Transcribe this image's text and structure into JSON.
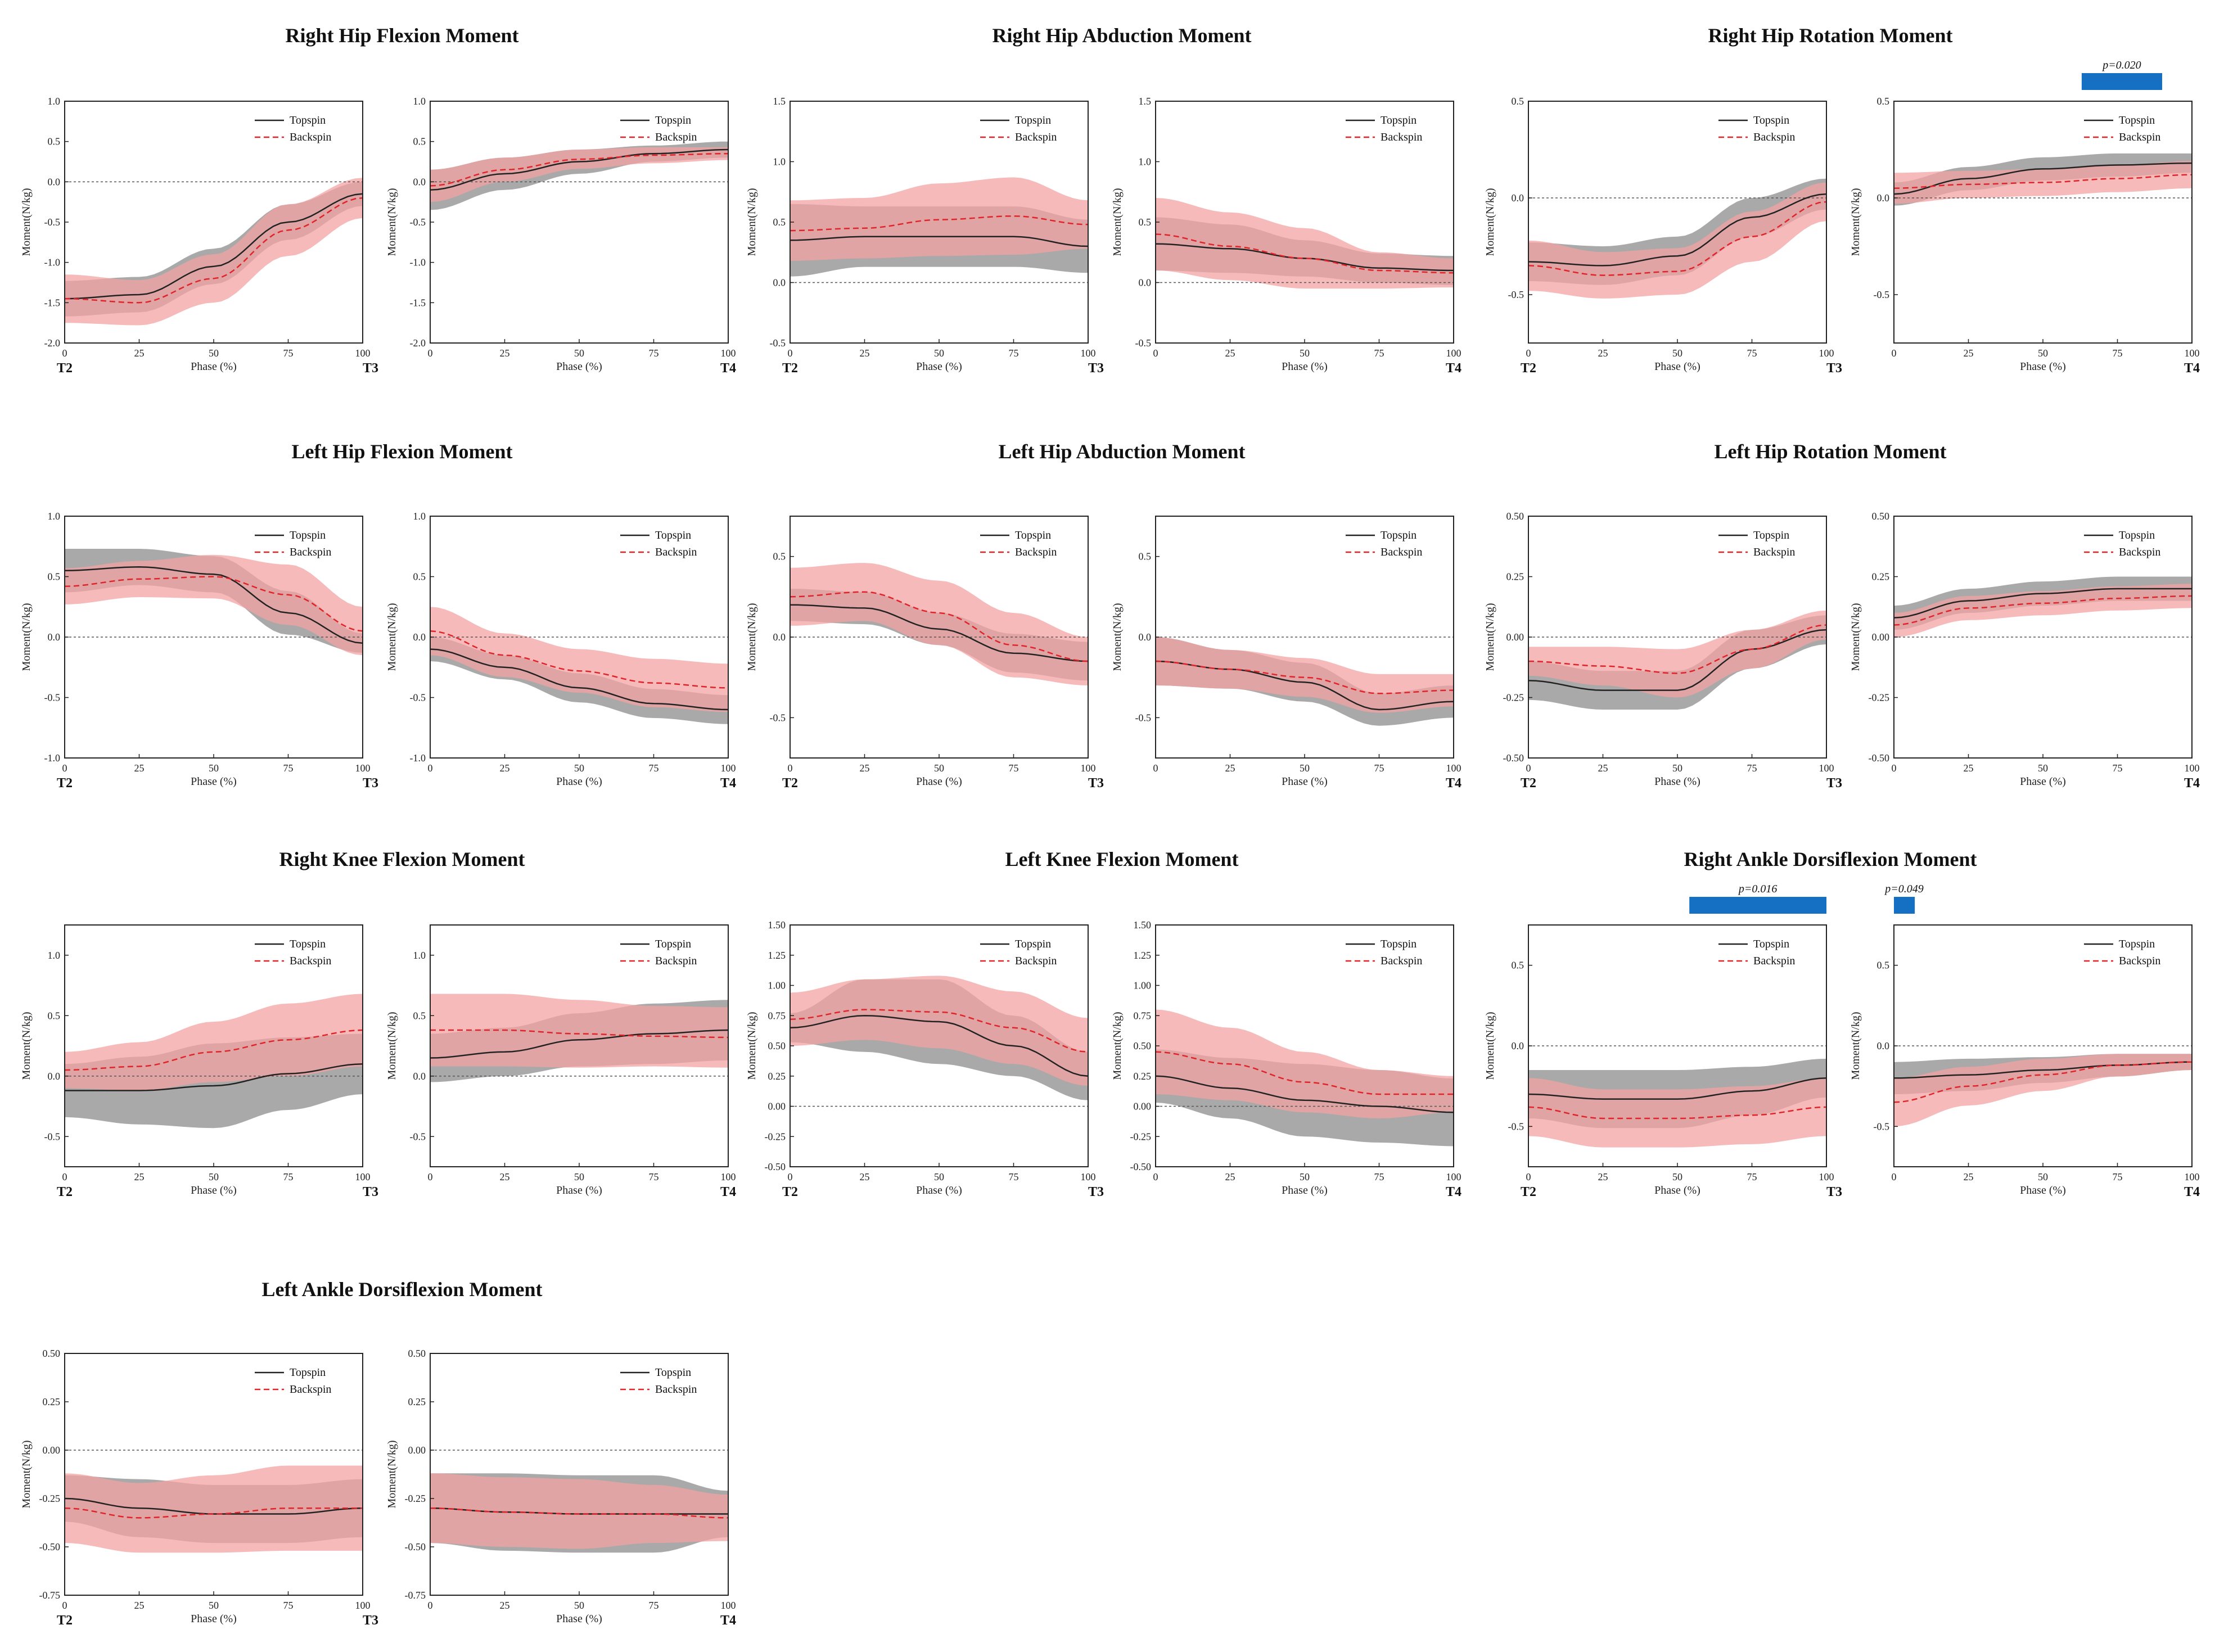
{
  "colors": {
    "topspin": "#222222",
    "backspin": "#e0242a",
    "topspin_band": "#8c8c8c",
    "backspin_band": "#f4a3a3",
    "sig_bar": "#1570c4",
    "zero_line": "#555555"
  },
  "labels": {
    "topspin": "Topspin",
    "backspin": "Backspin",
    "xlabel": "Phase (%)"
  },
  "chart_data": [
    {
      "type": "line",
      "title": "Right Hip Flexion Moment",
      "ylabel": "Moment(N/kg)",
      "ylim": [
        -2,
        1
      ],
      "yticks": [
        "1.0",
        "0.5",
        "0.0",
        "-0.5",
        "-1.0",
        "-1.5",
        "-2.0"
      ],
      "xticks": [
        "0",
        "25",
        "50",
        "75",
        "100"
      ],
      "start": "T2",
      "mid": "T3",
      "end": "T4",
      "left": {
        "x": [
          0,
          25,
          50,
          75,
          100
        ],
        "top": [
          -1.45,
          -1.4,
          -1.05,
          -0.5,
          -0.15
        ],
        "back": [
          -1.45,
          -1.5,
          -1.2,
          -0.6,
          -0.2
        ],
        "top_sd": [
          0.22,
          0.22,
          0.22,
          0.22,
          0.15
        ],
        "back_sd": [
          0.3,
          0.28,
          0.3,
          0.32,
          0.25
        ]
      },
      "right": {
        "x": [
          0,
          25,
          50,
          75,
          100
        ],
        "top": [
          -0.1,
          0.1,
          0.25,
          0.35,
          0.4
        ],
        "back": [
          -0.05,
          0.15,
          0.28,
          0.33,
          0.35
        ],
        "top_sd": [
          0.25,
          0.2,
          0.15,
          0.1,
          0.1
        ],
        "back_sd": [
          0.2,
          0.15,
          0.12,
          0.1,
          0.08
        ]
      }
    },
    {
      "type": "line",
      "title": "Right Hip Abduction Moment",
      "ylabel": "Moment(N/kg)",
      "ylim": [
        -0.5,
        1.5
      ],
      "yticks": [
        "1.5",
        "1.0",
        "0.5",
        "0.0",
        "-0.5"
      ],
      "xticks": [
        "0",
        "25",
        "50",
        "75",
        "100"
      ],
      "start": "T2",
      "mid": "T3",
      "end": "T4",
      "left": {
        "x": [
          0,
          25,
          50,
          75,
          100
        ],
        "top": [
          0.35,
          0.38,
          0.38,
          0.38,
          0.3
        ],
        "back": [
          0.43,
          0.45,
          0.52,
          0.55,
          0.48
        ],
        "top_sd": [
          0.3,
          0.25,
          0.25,
          0.25,
          0.22
        ],
        "back_sd": [
          0.25,
          0.25,
          0.3,
          0.32,
          0.2
        ]
      },
      "right": {
        "x": [
          0,
          25,
          50,
          75,
          100
        ],
        "top": [
          0.32,
          0.28,
          0.2,
          0.12,
          0.1
        ],
        "back": [
          0.4,
          0.3,
          0.2,
          0.1,
          0.08
        ],
        "top_sd": [
          0.22,
          0.2,
          0.15,
          0.12,
          0.12
        ],
        "back_sd": [
          0.3,
          0.28,
          0.25,
          0.15,
          0.12
        ]
      }
    },
    {
      "type": "line",
      "title": "Right Hip Rotation Moment",
      "ylabel": "Moment(N/kg)",
      "ylim": [
        -0.75,
        0.5
      ],
      "yticks": [
        "0.5",
        "0.0",
        "-0.5"
      ],
      "xticks": [
        "0",
        "25",
        "50",
        "75",
        "100"
      ],
      "start": "T2",
      "mid": "T3",
      "end": "T4",
      "sig_right": {
        "label": "p=0.020",
        "from": 63,
        "to": 90
      },
      "left": {
        "x": [
          0,
          25,
          50,
          75,
          100
        ],
        "top": [
          -0.33,
          -0.35,
          -0.3,
          -0.1,
          0.02
        ],
        "back": [
          -0.35,
          -0.4,
          -0.38,
          -0.2,
          -0.02
        ],
        "top_sd": [
          0.1,
          0.1,
          0.1,
          0.1,
          0.08
        ],
        "back_sd": [
          0.13,
          0.12,
          0.12,
          0.13,
          0.1
        ]
      },
      "right": {
        "x": [
          0,
          25,
          50,
          75,
          100
        ],
        "top": [
          0.02,
          0.1,
          0.15,
          0.17,
          0.18
        ],
        "back": [
          0.05,
          0.07,
          0.08,
          0.1,
          0.12
        ],
        "top_sd": [
          0.06,
          0.06,
          0.06,
          0.06,
          0.05
        ],
        "back_sd": [
          0.08,
          0.07,
          0.07,
          0.07,
          0.07
        ]
      }
    },
    {
      "type": "line",
      "title": "Left Hip Flexion Moment",
      "ylabel": "Moment(N/kg)",
      "ylim": [
        -1,
        1
      ],
      "yticks": [
        "1.0",
        "0.5",
        "0.0",
        "-0.5",
        "-1.0"
      ],
      "xticks": [
        "0",
        "25",
        "50",
        "75",
        "100"
      ],
      "start": "T2",
      "mid": "T3",
      "end": "T4",
      "left": {
        "x": [
          0,
          25,
          50,
          75,
          100
        ],
        "top": [
          0.55,
          0.58,
          0.52,
          0.2,
          -0.05
        ],
        "back": [
          0.42,
          0.48,
          0.5,
          0.35,
          0.05
        ],
        "top_sd": [
          0.18,
          0.15,
          0.15,
          0.18,
          0.08
        ],
        "back_sd": [
          0.15,
          0.15,
          0.18,
          0.25,
          0.2
        ]
      },
      "right": {
        "x": [
          0,
          25,
          50,
          75,
          100
        ],
        "top": [
          -0.1,
          -0.25,
          -0.42,
          -0.55,
          -0.6
        ],
        "back": [
          0.05,
          -0.15,
          -0.28,
          -0.38,
          -0.42
        ],
        "top_sd": [
          0.1,
          0.1,
          0.12,
          0.12,
          0.12
        ],
        "back_sd": [
          0.2,
          0.18,
          0.18,
          0.2,
          0.2
        ]
      }
    },
    {
      "type": "line",
      "title": "Left Hip Abduction Moment",
      "ylabel": "Moment(N/kg)",
      "ylim": [
        -0.75,
        0.75
      ],
      "yticks": [
        "0.5",
        "0.0",
        "-0.5"
      ],
      "xticks": [
        "0",
        "25",
        "50",
        "75",
        "100"
      ],
      "start": "T2",
      "mid": "T3",
      "end": "T4",
      "left": {
        "x": [
          0,
          25,
          50,
          75,
          100
        ],
        "top": [
          0.2,
          0.18,
          0.05,
          -0.1,
          -0.15
        ],
        "back": [
          0.25,
          0.28,
          0.15,
          -0.05,
          -0.15
        ],
        "top_sd": [
          0.1,
          0.1,
          0.1,
          0.12,
          0.12
        ],
        "back_sd": [
          0.18,
          0.18,
          0.2,
          0.2,
          0.15
        ]
      },
      "right": {
        "x": [
          0,
          25,
          50,
          75,
          100
        ],
        "top": [
          -0.15,
          -0.2,
          -0.28,
          -0.45,
          -0.4
        ],
        "back": [
          -0.15,
          -0.2,
          -0.25,
          -0.35,
          -0.33
        ],
        "top_sd": [
          0.15,
          0.12,
          0.12,
          0.1,
          0.1
        ],
        "back_sd": [
          0.15,
          0.12,
          0.12,
          0.12,
          0.1
        ]
      }
    },
    {
      "type": "line",
      "title": "Left Hip Rotation Moment",
      "ylabel": "Moment(N/kg)",
      "ylim": [
        -0.5,
        0.5
      ],
      "yticks": [
        "0.50",
        "0.25",
        "0.00",
        "-0.25",
        "-0.50"
      ],
      "xticks": [
        "0",
        "25",
        "50",
        "75",
        "100"
      ],
      "start": "T2",
      "mid": "T3",
      "end": "T4",
      "left": {
        "x": [
          0,
          25,
          50,
          75,
          100
        ],
        "top": [
          -0.18,
          -0.22,
          -0.22,
          -0.05,
          0.03
        ],
        "back": [
          -0.1,
          -0.12,
          -0.15,
          -0.05,
          0.05
        ],
        "top_sd": [
          0.08,
          0.08,
          0.08,
          0.08,
          0.06
        ],
        "back_sd": [
          0.06,
          0.08,
          0.1,
          0.08,
          0.06
        ]
      },
      "right": {
        "x": [
          0,
          25,
          50,
          75,
          100
        ],
        "top": [
          0.08,
          0.15,
          0.18,
          0.2,
          0.2
        ],
        "back": [
          0.05,
          0.12,
          0.14,
          0.16,
          0.17
        ],
        "top_sd": [
          0.05,
          0.05,
          0.05,
          0.05,
          0.05
        ],
        "back_sd": [
          0.05,
          0.05,
          0.05,
          0.05,
          0.05
        ]
      }
    },
    {
      "type": "line",
      "title": "Right Knee Flexion Moment",
      "ylabel": "Moment(N/kg)",
      "ylim": [
        -0.75,
        1.25
      ],
      "yticks": [
        "1.0",
        "0.5",
        "0.0",
        "-0.5"
      ],
      "xticks": [
        "0",
        "25",
        "50",
        "75",
        "100"
      ],
      "start": "T2",
      "mid": "T3",
      "end": "T4",
      "left": {
        "x": [
          0,
          25,
          50,
          75,
          100
        ],
        "top": [
          -0.12,
          -0.12,
          -0.08,
          0.02,
          0.1
        ],
        "back": [
          0.05,
          0.08,
          0.2,
          0.3,
          0.38
        ],
        "top_sd": [
          0.22,
          0.28,
          0.35,
          0.3,
          0.25
        ],
        "back_sd": [
          0.15,
          0.2,
          0.25,
          0.3,
          0.3
        ]
      },
      "right": {
        "x": [
          0,
          25,
          50,
          75,
          100
        ],
        "top": [
          0.15,
          0.2,
          0.3,
          0.35,
          0.38
        ],
        "back": [
          0.38,
          0.38,
          0.35,
          0.33,
          0.32
        ],
        "top_sd": [
          0.2,
          0.2,
          0.22,
          0.25,
          0.25
        ],
        "back_sd": [
          0.3,
          0.3,
          0.28,
          0.25,
          0.25
        ]
      }
    },
    {
      "type": "line",
      "title": "Left Knee Flexion Moment",
      "ylabel": "Moment(N/kg)",
      "ylim": [
        -0.5,
        1.5
      ],
      "yticks": [
        "1.50",
        "1.25",
        "1.00",
        "0.75",
        "0.50",
        "0.25",
        "0.00",
        "-0.25",
        "-0.50"
      ],
      "xticks": [
        "0",
        "25",
        "50",
        "75",
        "100"
      ],
      "start": "T2",
      "mid": "T3",
      "end": "T4",
      "left": {
        "x": [
          0,
          25,
          50,
          75,
          100
        ],
        "top": [
          0.65,
          0.75,
          0.7,
          0.5,
          0.25
        ],
        "back": [
          0.72,
          0.8,
          0.78,
          0.65,
          0.45
        ],
        "top_sd": [
          0.12,
          0.3,
          0.35,
          0.25,
          0.2
        ],
        "back_sd": [
          0.22,
          0.25,
          0.3,
          0.3,
          0.28
        ]
      },
      "right": {
        "x": [
          0,
          25,
          50,
          75,
          100
        ],
        "top": [
          0.25,
          0.15,
          0.05,
          0,
          -0.05
        ],
        "back": [
          0.45,
          0.35,
          0.2,
          0.1,
          0.1
        ],
        "top_sd": [
          0.22,
          0.25,
          0.3,
          0.3,
          0.28
        ],
        "back_sd": [
          0.35,
          0.3,
          0.25,
          0.2,
          0.15
        ]
      }
    },
    {
      "type": "line",
      "title": "Right Ankle Dorsiflexion Moment",
      "ylabel": "Moment(N/kg)",
      "ylim": [
        -0.75,
        0.75
      ],
      "yticks": [
        "0.5",
        "0.0",
        "-0.5"
      ],
      "xticks": [
        "0",
        "25",
        "50",
        "75",
        "100"
      ],
      "start": "T2",
      "mid": "T3",
      "end": "T4",
      "sig_left": {
        "label": "p=0.016",
        "from": 54,
        "to": 100
      },
      "sig_right": {
        "label": "p=0.049",
        "from": 0,
        "to": 7
      },
      "left": {
        "x": [
          0,
          25,
          50,
          75,
          100
        ],
        "top": [
          -0.3,
          -0.33,
          -0.33,
          -0.28,
          -0.2
        ],
        "back": [
          -0.38,
          -0.45,
          -0.45,
          -0.43,
          -0.38
        ],
        "top_sd": [
          0.15,
          0.18,
          0.18,
          0.15,
          0.12
        ],
        "back_sd": [
          0.18,
          0.18,
          0.18,
          0.18,
          0.18
        ]
      },
      "right": {
        "x": [
          0,
          25,
          50,
          75,
          100
        ],
        "top": [
          -0.2,
          -0.18,
          -0.15,
          -0.12,
          -0.1
        ],
        "back": [
          -0.35,
          -0.25,
          -0.18,
          -0.12,
          -0.1
        ],
        "top_sd": [
          0.1,
          0.1,
          0.08,
          0.07,
          0.05
        ],
        "back_sd": [
          0.15,
          0.12,
          0.1,
          0.07,
          0.05
        ]
      }
    },
    {
      "type": "line",
      "title": "Left Ankle Dorsiflexion Moment",
      "ylabel": "Moment(N/kg)",
      "ylim": [
        -0.75,
        0.5
      ],
      "yticks": [
        "0.50",
        "0.25",
        "0.00",
        "-0.25",
        "-0.50",
        "-0.75"
      ],
      "xticks": [
        "0",
        "25",
        "50",
        "75",
        "100"
      ],
      "start": "T2",
      "mid": "T3",
      "end": "T4",
      "left": {
        "x": [
          0,
          25,
          50,
          75,
          100
        ],
        "top": [
          -0.25,
          -0.3,
          -0.33,
          -0.33,
          -0.3
        ],
        "back": [
          -0.3,
          -0.35,
          -0.33,
          -0.3,
          -0.3
        ],
        "top_sd": [
          0.12,
          0.15,
          0.15,
          0.15,
          0.15
        ],
        "back_sd": [
          0.18,
          0.18,
          0.2,
          0.22,
          0.22
        ]
      },
      "right": {
        "x": [
          0,
          25,
          50,
          75,
          100
        ],
        "top": [
          -0.3,
          -0.32,
          -0.33,
          -0.33,
          -0.33
        ],
        "back": [
          -0.3,
          -0.32,
          -0.33,
          -0.33,
          -0.35
        ],
        "top_sd": [
          0.18,
          0.2,
          0.2,
          0.2,
          0.12
        ],
        "back_sd": [
          0.18,
          0.18,
          0.18,
          0.15,
          0.12
        ]
      }
    }
  ]
}
